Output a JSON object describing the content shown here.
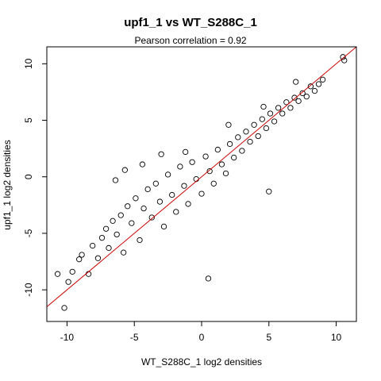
{
  "chart_data": {
    "type": "scatter",
    "title": "upf1_1 vs WT_S288C_1",
    "subtitle": "Pearson correlation =  0.92",
    "xlabel": "WT_S288C_1 log2 densities",
    "ylabel": "upf1_1 log2 densities",
    "xlim": [
      -11.5,
      11.5
    ],
    "ylim": [
      -12.8,
      11.5
    ],
    "x_ticks": [
      -10,
      -5,
      0,
      5,
      10
    ],
    "y_ticks": [
      -10,
      -5,
      0,
      5,
      10
    ],
    "x_tick_labels": [
      "-10",
      "-5",
      "0",
      "5",
      "10"
    ],
    "y_tick_labels": [
      "-10",
      "-5",
      "0",
      "5",
      "10"
    ],
    "grid": false,
    "legend": "none",
    "marker": "open-circle",
    "point_color": "#000000",
    "fit_line": {
      "color": "#cc0000",
      "slope": 1.0,
      "intercept": 0.0
    },
    "points": [
      [
        -10.2,
        -11.6
      ],
      [
        -10.7,
        -8.6
      ],
      [
        -9.9,
        -9.3
      ],
      [
        -9.6,
        -8.4
      ],
      [
        -9.1,
        -7.3
      ],
      [
        -8.9,
        -6.9
      ],
      [
        -8.4,
        -8.6
      ],
      [
        -8.1,
        -6.1
      ],
      [
        -7.7,
        -7.2
      ],
      [
        -7.4,
        -5.4
      ],
      [
        -7.1,
        -4.6
      ],
      [
        -6.9,
        -6.3
      ],
      [
        -6.6,
        -3.9
      ],
      [
        -6.3,
        -5.1
      ],
      [
        -6.0,
        -3.4
      ],
      [
        -5.8,
        -6.7
      ],
      [
        -5.5,
        -2.6
      ],
      [
        -5.2,
        -4.1
      ],
      [
        -4.9,
        -1.9
      ],
      [
        -4.6,
        -5.6
      ],
      [
        -4.3,
        -2.8
      ],
      [
        -4.0,
        -1.1
      ],
      [
        -3.7,
        -3.6
      ],
      [
        -3.4,
        -0.6
      ],
      [
        -3.1,
        -2.2
      ],
      [
        -2.8,
        -4.4
      ],
      [
        -2.5,
        0.2
      ],
      [
        -2.2,
        -1.6
      ],
      [
        -1.9,
        -3.1
      ],
      [
        -1.6,
        0.9
      ],
      [
        -1.3,
        -0.8
      ],
      [
        -1.0,
        -2.4
      ],
      [
        -0.7,
        1.3
      ],
      [
        -0.4,
        -0.2
      ],
      [
        0.0,
        -1.5
      ],
      [
        0.3,
        1.8
      ],
      [
        0.6,
        0.5
      ],
      [
        0.9,
        -0.6
      ],
      [
        1.2,
        2.4
      ],
      [
        1.5,
        1.1
      ],
      [
        1.8,
        0.3
      ],
      [
        2.1,
        2.9
      ],
      [
        2.4,
        1.7
      ],
      [
        2.7,
        3.5
      ],
      [
        3.0,
        2.3
      ],
      [
        3.3,
        4.0
      ],
      [
        3.6,
        3.1
      ],
      [
        3.9,
        4.6
      ],
      [
        4.2,
        3.6
      ],
      [
        4.5,
        5.1
      ],
      [
        4.8,
        4.3
      ],
      [
        5.1,
        5.6
      ],
      [
        5.4,
        4.9
      ],
      [
        5.7,
        6.1
      ],
      [
        6.0,
        5.6
      ],
      [
        6.3,
        6.6
      ],
      [
        6.6,
        6.1
      ],
      [
        6.9,
        7.0
      ],
      [
        7.2,
        6.7
      ],
      [
        7.5,
        7.4
      ],
      [
        7.8,
        7.1
      ],
      [
        8.1,
        8.0
      ],
      [
        8.4,
        7.6
      ],
      [
        8.7,
        8.2
      ],
      [
        9.0,
        8.6
      ],
      [
        10.5,
        10.6
      ],
      [
        10.6,
        10.3
      ],
      [
        5.0,
        -1.3
      ],
      [
        0.5,
        -9.0
      ],
      [
        2.0,
        4.6
      ],
      [
        -5.7,
        0.6
      ],
      [
        -6.4,
        -0.3
      ],
      [
        -4.4,
        1.1
      ],
      [
        -3.0,
        2.0
      ],
      [
        -1.2,
        2.2
      ],
      [
        4.6,
        6.2
      ],
      [
        7.0,
        8.4
      ]
    ]
  }
}
